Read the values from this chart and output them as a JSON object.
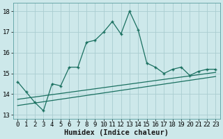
{
  "title": "",
  "xlabel": "Humidex (Indice chaleur)",
  "bg_color": "#cde8ea",
  "grid_color": "#aacdd0",
  "line_color": "#1a7060",
  "xlim": [
    -0.5,
    23.5
  ],
  "ylim": [
    12.8,
    18.4
  ],
  "xticks": [
    0,
    1,
    2,
    3,
    4,
    5,
    6,
    7,
    8,
    9,
    10,
    11,
    12,
    13,
    14,
    15,
    16,
    17,
    18,
    19,
    20,
    21,
    22,
    23
  ],
  "yticks": [
    13,
    14,
    15,
    16,
    17,
    18
  ],
  "main_x": [
    0,
    1,
    2,
    3,
    4,
    5,
    6,
    7,
    8,
    9,
    10,
    11,
    12,
    13,
    14,
    15,
    16,
    17,
    18,
    19,
    20,
    21,
    22,
    23
  ],
  "main_y": [
    14.6,
    14.1,
    13.6,
    13.2,
    14.5,
    14.4,
    15.3,
    15.3,
    16.5,
    16.6,
    17.0,
    17.5,
    16.9,
    18.0,
    17.1,
    15.5,
    15.3,
    15.0,
    15.2,
    15.3,
    14.9,
    15.1,
    15.2,
    15.2
  ],
  "line1_x": [
    0,
    23
  ],
  "line1_y": [
    13.75,
    15.05
  ],
  "line2_x": [
    0,
    23
  ],
  "line2_y": [
    13.45,
    14.85
  ],
  "xlabel_fontsize": 7.5,
  "tick_fontsize": 6.5,
  "line_width": 0.9,
  "marker_size": 3.5
}
